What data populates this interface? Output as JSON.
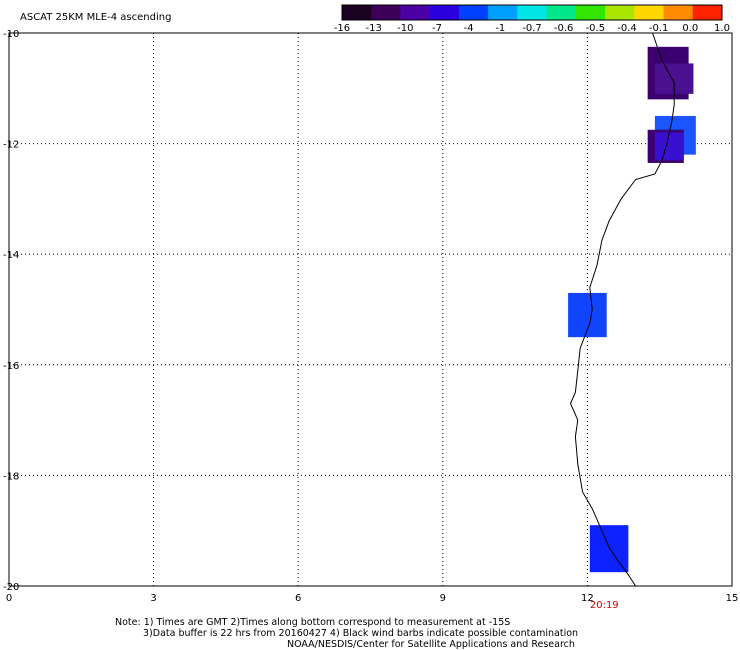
{
  "title": "ASCAT 25KM MLE-4 ascending",
  "colorbar": {
    "tick_labels": [
      "-16",
      "-13",
      "-10",
      "-7",
      "-4",
      "-1",
      "-0.7",
      "-0.6",
      "-0.5",
      "-0.4",
      "-0.1",
      "0.0",
      "1.0"
    ],
    "colors": [
      "#1a0021",
      "#3d0059",
      "#4b00a6",
      "#2a00e0",
      "#0040ff",
      "#00a0ff",
      "#00e6e6",
      "#00e68a",
      "#33e600",
      "#a8e600",
      "#ffd700",
      "#ff8c00",
      "#ff2200"
    ]
  },
  "map": {
    "lon_range": [
      0,
      15
    ],
    "lat_range": [
      -20,
      -10
    ],
    "x_tick_labels": [
      "0",
      "3",
      "6",
      "9",
      "12",
      "15"
    ],
    "y_tick_labels": [
      "-10",
      "-12",
      "-14",
      "-16",
      "-18",
      "-20"
    ],
    "time_label": "20:19",
    "time_label_color": "#cc0000",
    "grid": "dotted",
    "cells": [
      {
        "lon": 13.25,
        "lat": -10.25,
        "lon2": 14.1,
        "lat2": -11.2,
        "color": "#3d0070"
      },
      {
        "lon": 13.4,
        "lat": -10.55,
        "lon2": 14.2,
        "lat2": -11.1,
        "color": "#4a1090"
      },
      {
        "lon": 13.4,
        "lat": -11.5,
        "lon2": 14.25,
        "lat2": -12.2,
        "color": "#1a55ff"
      },
      {
        "lon": 13.25,
        "lat": -11.75,
        "lon2": 14.0,
        "lat2": -12.35,
        "color": "#3d0070"
      },
      {
        "lon": 13.4,
        "lat": -11.8,
        "lon2": 14.0,
        "lat2": -12.3,
        "color": "#3a10d0"
      },
      {
        "lon": 11.6,
        "lat": -14.7,
        "lon2": 12.4,
        "lat2": -15.5,
        "color": "#1144ff"
      },
      {
        "lon": 12.05,
        "lat": -18.9,
        "lon2": 12.85,
        "lat2": -19.75,
        "color": "#0d22ff"
      }
    ],
    "coastline": [
      [
        13.35,
        -10.0
      ],
      [
        13.55,
        -10.5
      ],
      [
        13.8,
        -10.9
      ],
      [
        13.8,
        -11.3
      ],
      [
        13.75,
        -11.6
      ],
      [
        13.65,
        -12.0
      ],
      [
        13.55,
        -12.3
      ],
      [
        13.4,
        -12.55
      ],
      [
        13.0,
        -12.65
      ],
      [
        12.7,
        -13.0
      ],
      [
        12.45,
        -13.4
      ],
      [
        12.3,
        -13.75
      ],
      [
        12.2,
        -14.2
      ],
      [
        12.05,
        -14.6
      ],
      [
        12.1,
        -15.0
      ],
      [
        12.05,
        -15.25
      ],
      [
        11.85,
        -15.7
      ],
      [
        11.8,
        -16.1
      ],
      [
        11.75,
        -16.5
      ],
      [
        11.65,
        -16.7
      ],
      [
        11.8,
        -17.0
      ],
      [
        11.75,
        -17.3
      ],
      [
        11.8,
        -17.8
      ],
      [
        11.9,
        -18.3
      ],
      [
        12.1,
        -18.6
      ],
      [
        12.25,
        -18.9
      ],
      [
        12.45,
        -19.3
      ],
      [
        12.6,
        -19.5
      ],
      [
        12.85,
        -19.8
      ],
      [
        13.0,
        -20.0
      ]
    ]
  },
  "notes": {
    "line1": "Note: 1) Times are GMT 2)Times along bottom correspond to measurement at -15S",
    "line2": "3)Data buffer is 22 hrs from 20160427 4) Black wind barbs indicate possible contamination",
    "line3": "NOAA/NESDIS/Center for Satellite Applications and Research"
  }
}
